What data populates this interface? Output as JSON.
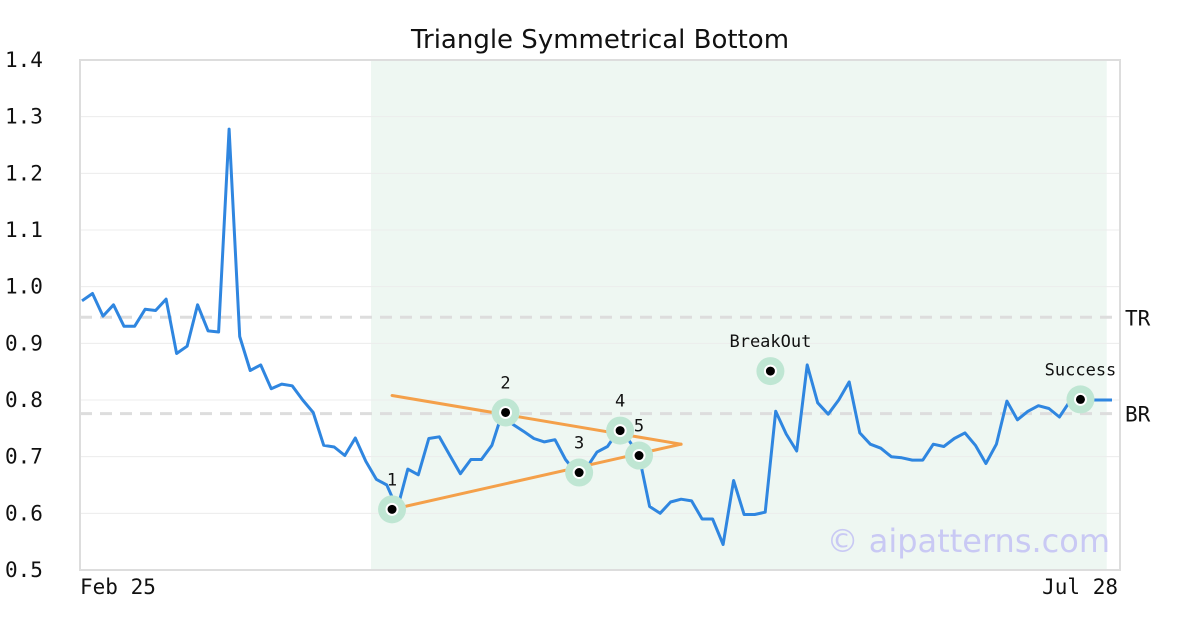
{
  "colors": {
    "price_line": "#2f86e0",
    "triangle_lines": "#f4a04a",
    "highlight_band": "#eef7f2",
    "marker_halo": "#bfe6d3",
    "marker_dot": "#000000",
    "ref_lines": "#dddddd",
    "grid": "#ececec",
    "frame": "#dddddd",
    "watermark": "#c9c9f4"
  },
  "watermark": "© aipatterns.com",
  "chart_data": {
    "type": "line",
    "title": "Triangle Symmetrical Bottom",
    "xlabel": "",
    "ylabel": "",
    "ylim": [
      0.5,
      1.4
    ],
    "yticks": [
      "0.5",
      "0.6",
      "0.7",
      "0.8",
      "0.9",
      "1.0",
      "1.1",
      "1.2",
      "1.3",
      "1.4"
    ],
    "xticks": [
      {
        "index": 0,
        "label": "Feb 25"
      },
      {
        "index": 104,
        "label": "Jul 28"
      }
    ],
    "grid": true,
    "series": [
      {
        "values": [
          0.975,
          0.988,
          0.948,
          0.968,
          0.93,
          0.93,
          0.96,
          0.958,
          0.978,
          0.882,
          0.895,
          0.968,
          0.922,
          0.92,
          1.278,
          0.912,
          0.852,
          0.862,
          0.82,
          0.828,
          0.825,
          0.8,
          0.778,
          0.72,
          0.717,
          0.702,
          0.733,
          0.692,
          0.66,
          0.65,
          0.608,
          0.678,
          0.668,
          0.732,
          0.735,
          0.702,
          0.67,
          0.695,
          0.695,
          0.72,
          0.778,
          0.757,
          0.745,
          0.732,
          0.726,
          0.73,
          0.695,
          0.672,
          0.68,
          0.708,
          0.718,
          0.745,
          0.73,
          0.702,
          0.612,
          0.6,
          0.62,
          0.625,
          0.622,
          0.59,
          0.59,
          0.545,
          0.658,
          0.598,
          0.598,
          0.602,
          0.78,
          0.74,
          0.71,
          0.862,
          0.795,
          0.775,
          0.8,
          0.832,
          0.742,
          0.722,
          0.715,
          0.7,
          0.698,
          0.694,
          0.694,
          0.722,
          0.718,
          0.732,
          0.742,
          0.72,
          0.688,
          0.722,
          0.798,
          0.765,
          0.78,
          0.79,
          0.785,
          0.77,
          0.798,
          0.802,
          0.8,
          0.8,
          0.8
        ]
      }
    ],
    "shaded_range": {
      "from_index": 27.5,
      "to_index": 97.5
    },
    "reference_lines": [
      {
        "label": "TR",
        "value": 0.946
      },
      {
        "label": "BR",
        "value": 0.776
      }
    ],
    "triangle_lines": [
      {
        "from": {
          "index": 29.5,
          "value": 0.808
        },
        "to": {
          "index": 57,
          "value": 0.722
        }
      },
      {
        "from": {
          "index": 29.5,
          "value": 0.607
        },
        "to": {
          "index": 57,
          "value": 0.722
        }
      }
    ],
    "points": [
      {
        "label": "1",
        "index": 29.5,
        "value": 0.607,
        "label_pos": "above"
      },
      {
        "label": "2",
        "index": 40.3,
        "value": 0.778,
        "label_pos": "above"
      },
      {
        "label": "3",
        "index": 47.3,
        "value": 0.672,
        "label_pos": "above"
      },
      {
        "label": "4",
        "index": 51.2,
        "value": 0.746,
        "label_pos": "above"
      },
      {
        "label": "5",
        "index": 53.0,
        "value": 0.702,
        "label_pos": "above"
      },
      {
        "label": "BreakOut",
        "index": 65.5,
        "value": 0.851,
        "label_pos": "above"
      },
      {
        "label": "Success",
        "index": 95.0,
        "value": 0.801,
        "label_pos": "above"
      }
    ]
  }
}
